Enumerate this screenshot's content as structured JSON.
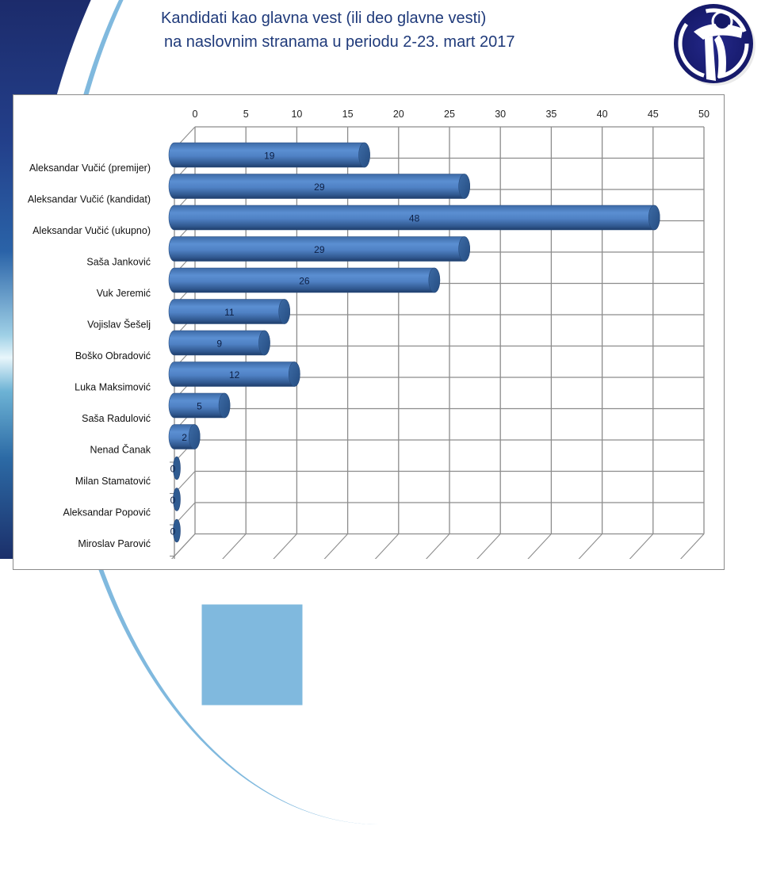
{
  "slide": {
    "title_line1": "Kandidati kao glavna vest (ili deo glavne vesti)",
    "title_line2": "na naslovnim stranama u periodu 2-23. mart 2017",
    "logo_icon": "transparency-logo-icon",
    "colors": {
      "title": "#1f3a7a",
      "bar": "#4f81bd",
      "bar_dark": "#2e5a90",
      "logo": "#1a1f7a",
      "grid": "#8c8c8c"
    }
  },
  "chart_data": {
    "type": "bar",
    "orientation": "horizontal",
    "style": "3d-cylinder",
    "title": "Kandidati kao glavna vest (ili deo glavne vesti) na naslovnim stranama u periodu 2-23. mart 2017",
    "xlabel": "",
    "ylabel": "",
    "xlim": [
      0,
      50
    ],
    "x_ticks": [
      "0",
      "5",
      "10",
      "15",
      "20",
      "25",
      "30",
      "35",
      "40",
      "45",
      "50"
    ],
    "x_axis_position": "top",
    "grid": true,
    "legend": null,
    "categories": [
      "Aleksandar Vučić (premijer)",
      "Aleksandar Vučić (kandidat)",
      "Aleksandar Vučić (ukupno)",
      "Saša Janković",
      "Vuk Jeremić",
      "Vojislav Šešelj",
      "Boško Obradović",
      "Luka Maksimović",
      "Saša Radulović",
      "Nenad Čanak",
      "Milan Stamatović",
      "Aleksandar Popović",
      "Miroslav Parović"
    ],
    "values": [
      19,
      29,
      48,
      29,
      26,
      11,
      9,
      12,
      5,
      2,
      0,
      0,
      0
    ],
    "value_labels": [
      "19",
      "29",
      "48",
      "29",
      "26",
      "11",
      "9",
      "12",
      "5",
      "2",
      "0",
      "0",
      "0"
    ]
  }
}
